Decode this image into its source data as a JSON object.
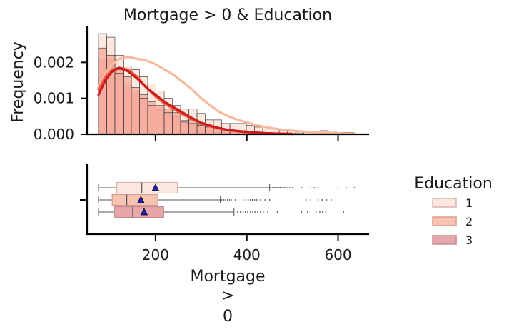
{
  "chart_data": {
    "type": "histogram+boxplot",
    "title": "Mortgage > 0 & Education",
    "xlabel": [
      "Mortgage",
      ">",
      "0"
    ],
    "ylabel": "Frequency",
    "xlim": [
      50,
      668
    ],
    "ylim": [
      0,
      0.003
    ],
    "x_ticks": [
      200,
      400,
      600
    ],
    "y_ticks": [
      0.0,
      0.001,
      0.002
    ],
    "y_tick_labels": [
      "0.000",
      "0.001",
      "0.002"
    ],
    "x_tick_labels": [
      "200",
      "400",
      "600"
    ],
    "legend": {
      "title": "Education",
      "placement": "right",
      "entries": [
        "1",
        "2",
        "3"
      ]
    },
    "colors": {
      "edu1_fill": "#fde8e0",
      "edu2_fill": "#f8c4b2",
      "edu3_fill": "#e6a6aa",
      "edu1_line": "#f8b99e",
      "edu2_line": "#f05e3f",
      "edu3_line": "#cc1a20",
      "hist_base": "#f4a898",
      "mean_marker": "#1f1fbf"
    },
    "histogram": {
      "bin_edges": [
        75,
        93,
        111,
        129,
        147,
        165,
        183,
        201,
        219,
        237,
        255,
        273,
        291,
        309,
        327,
        345,
        363,
        381,
        399,
        417,
        435,
        453,
        471,
        489,
        507,
        525,
        543,
        561,
        579,
        597,
        615,
        635
      ],
      "series": [
        {
          "name": "1",
          "values": [
            0.0028,
            0.0027,
            0.0022,
            0.0019,
            0.0018,
            0.0016,
            0.0014,
            0.0012,
            0.001,
            0.0008,
            0.0007,
            0.0007,
            0.00058,
            0.0004,
            0.0004,
            0.0003,
            0.0003,
            0.0003,
            0.00025,
            0.0002,
            0.00015,
            0.00015,
            0.0001,
            0.0001,
            6e-05,
            5e-05,
            8e-05,
            0.0001,
            6e-05,
            5e-05,
            5e-05
          ]
        },
        {
          "name": "2",
          "values": [
            0.0024,
            0.0022,
            0.0018,
            0.0016,
            0.0013,
            0.0011,
            0.0009,
            0.0008,
            0.0007,
            0.0006,
            0.00038,
            0.0004,
            0.00026,
            0.00022,
            0.00018,
            0.00015,
            0.0001,
            0.0001,
            8e-05,
            6e-05,
            4e-05,
            4e-05,
            3e-05,
            2e-05,
            2e-05,
            1e-05,
            1e-05,
            1e-05,
            1e-05,
            1e-05,
            1e-05
          ]
        },
        {
          "name": "3",
          "values": [
            0.0021,
            0.0021,
            0.0017,
            0.0014,
            0.0012,
            0.001,
            0.0008,
            0.0007,
            0.0006,
            0.0005,
            0.00034,
            0.0003,
            0.00024,
            0.0002,
            0.00016,
            0.00014,
            0.0001,
            0.0001,
            8e-05,
            6e-05,
            4e-05,
            3e-05,
            3e-05,
            2e-05,
            2e-05,
            1e-05,
            1e-05,
            1e-05,
            1e-05,
            1e-05,
            1e-05
          ]
        }
      ]
    },
    "kde": [
      {
        "name": "1",
        "x": [
          75,
          90,
          105,
          120,
          140,
          160,
          180,
          200,
          220,
          240,
          260,
          280,
          300,
          320,
          340,
          360,
          380,
          400,
          420,
          440,
          460,
          480,
          500,
          520,
          540,
          560,
          580,
          600,
          620,
          635
        ],
        "y": [
          0.0013,
          0.0017,
          0.00195,
          0.0021,
          0.00215,
          0.0021,
          0.00205,
          0.00195,
          0.0018,
          0.00165,
          0.00145,
          0.00125,
          0.001,
          0.0008,
          0.00062,
          0.0005,
          0.0004,
          0.00033,
          0.00026,
          0.0002,
          0.00016,
          0.00012,
          0.0001,
          8e-05,
          6e-05,
          5e-05,
          4e-05,
          3e-05,
          2e-05,
          2e-05
        ]
      },
      {
        "name": "2",
        "x": [
          75,
          90,
          105,
          120,
          140,
          160,
          180,
          200,
          220,
          240,
          260,
          280,
          300,
          320,
          340,
          360,
          380,
          400,
          420,
          440,
          460,
          480,
          500
        ],
        "y": [
          0.00125,
          0.0016,
          0.0018,
          0.00185,
          0.0018,
          0.0016,
          0.0013,
          0.00105,
          0.00085,
          0.0007,
          0.00055,
          0.00042,
          0.0003,
          0.00022,
          0.00016,
          0.00011,
          8e-05,
          6e-05,
          4e-05,
          3e-05,
          2e-05,
          1.5e-05,
          1e-05
        ]
      },
      {
        "name": "3",
        "x": [
          75,
          90,
          105,
          120,
          140,
          160,
          180,
          200,
          220,
          240,
          260,
          280,
          300,
          320,
          340,
          360,
          380,
          400,
          420,
          440,
          460,
          480,
          500
        ],
        "y": [
          0.0011,
          0.0015,
          0.00175,
          0.00185,
          0.00175,
          0.00155,
          0.0013,
          0.0011,
          0.0009,
          0.00075,
          0.0006,
          0.00045,
          0.00032,
          0.00024,
          0.00017,
          0.00012,
          9e-05,
          7e-05,
          5e-05,
          3e-05,
          2e-05,
          1.5e-05,
          1e-05
        ]
      }
    ],
    "boxplot": [
      {
        "name": "1",
        "whislo": 75,
        "q1": 115,
        "med": 170,
        "q3": 248,
        "whishi": 450,
        "mean": 200,
        "fliers": [
          452,
          456,
          460,
          463,
          466,
          470,
          473,
          476,
          480,
          483,
          486,
          490,
          494,
          500,
          520,
          540,
          548,
          556,
          600,
          618,
          636
        ]
      },
      {
        "name": "2",
        "whislo": 75,
        "q1": 105,
        "med": 137,
        "q3": 205,
        "whishi": 342,
        "mean": 168,
        "fliers": [
          345,
          350,
          354,
          358,
          362,
          366,
          375,
          392,
          398,
          403,
          408,
          412,
          417,
          422,
          430,
          440,
          450,
          530,
          540,
          556,
          565,
          575,
          585
        ]
      },
      {
        "name": "3",
        "whislo": 75,
        "q1": 110,
        "med": 150,
        "q3": 218,
        "whishi": 372,
        "mean": 175,
        "fliers": [
          380,
          386,
          392,
          397,
          402,
          408,
          413,
          418,
          424,
          430,
          436,
          446,
          467,
          520,
          533,
          552,
          560,
          566,
          573,
          612
        ]
      }
    ]
  }
}
